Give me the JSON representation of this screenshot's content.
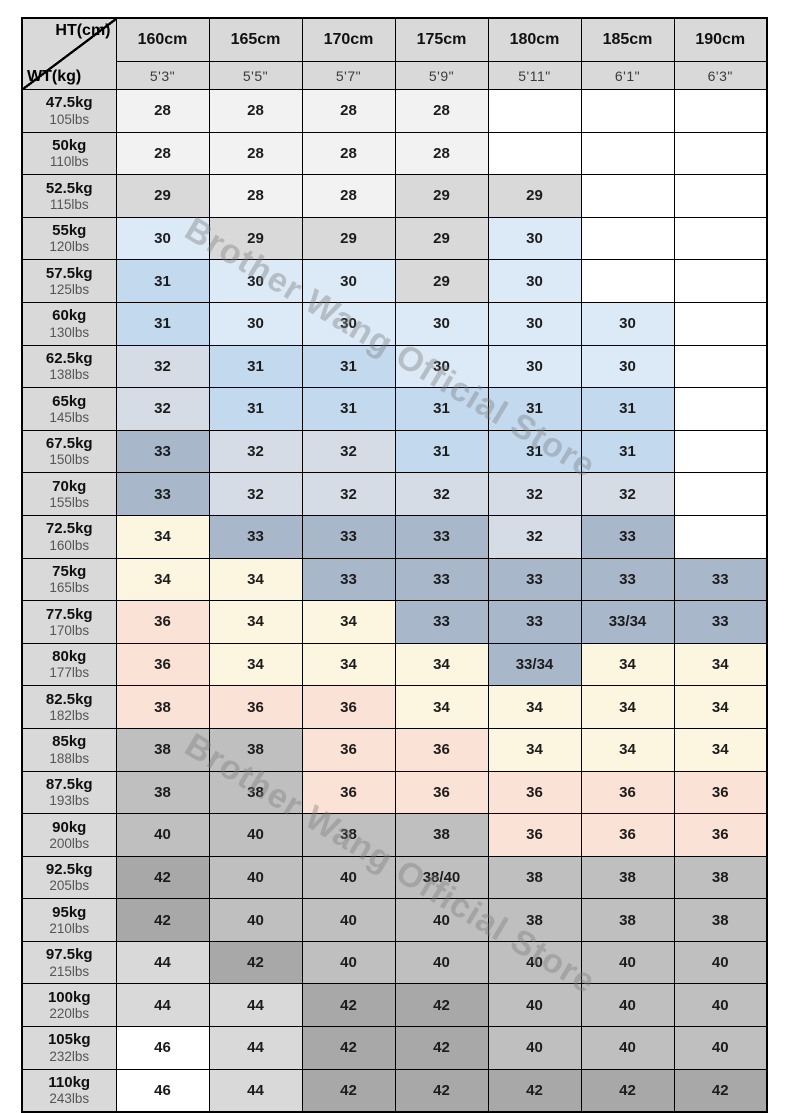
{
  "watermark": {
    "text": "Brother Wang Official Store"
  },
  "palette": {
    "w": "#ffffff",
    "xl": "#f2f2f2",
    "g": "#d9d9d9",
    "mg": "#bfbfbf",
    "dg": "#a8a8a8",
    "lb": "#dce9f6",
    "mb": "#c3d9ee",
    "ls": "#d5dce5",
    "sl": "#a8b7c9",
    "cr": "#fcf6e0",
    "pe": "#fbe2d6"
  },
  "chart_data": {
    "type": "table",
    "title": "Height / Weight size chart",
    "corner": {
      "top_label": "HT(cm)",
      "bottom_label": "WT(kg)"
    },
    "height_columns": [
      {
        "cm": "160cm",
        "ft": "5'3\""
      },
      {
        "cm": "165cm",
        "ft": "5'5\""
      },
      {
        "cm": "170cm",
        "ft": "5'7\""
      },
      {
        "cm": "175cm",
        "ft": "5'9\""
      },
      {
        "cm": "180cm",
        "ft": "5'11\""
      },
      {
        "cm": "185cm",
        "ft": "6'1\""
      },
      {
        "cm": "190cm",
        "ft": "6'3\""
      }
    ],
    "weight_rows": [
      {
        "kg": "47.5kg",
        "lbs": "105lbs",
        "sizes": [
          {
            "v": "28",
            "bg": "xl"
          },
          {
            "v": "28",
            "bg": "xl"
          },
          {
            "v": "28",
            "bg": "xl"
          },
          {
            "v": "28",
            "bg": "xl"
          },
          {
            "v": "",
            "bg": "w"
          },
          {
            "v": "",
            "bg": "w"
          },
          {
            "v": "",
            "bg": "w"
          }
        ]
      },
      {
        "kg": "50kg",
        "lbs": "110lbs",
        "sizes": [
          {
            "v": "28",
            "bg": "xl"
          },
          {
            "v": "28",
            "bg": "xl"
          },
          {
            "v": "28",
            "bg": "xl"
          },
          {
            "v": "28",
            "bg": "xl"
          },
          {
            "v": "",
            "bg": "w"
          },
          {
            "v": "",
            "bg": "w"
          },
          {
            "v": "",
            "bg": "w"
          }
        ]
      },
      {
        "kg": "52.5kg",
        "lbs": "115lbs",
        "sizes": [
          {
            "v": "29",
            "bg": "g"
          },
          {
            "v": "28",
            "bg": "xl"
          },
          {
            "v": "28",
            "bg": "xl"
          },
          {
            "v": "29",
            "bg": "g"
          },
          {
            "v": "29",
            "bg": "g"
          },
          {
            "v": "",
            "bg": "w"
          },
          {
            "v": "",
            "bg": "w"
          }
        ]
      },
      {
        "kg": "55kg",
        "lbs": "120lbs",
        "sizes": [
          {
            "v": "30",
            "bg": "lb"
          },
          {
            "v": "29",
            "bg": "g"
          },
          {
            "v": "29",
            "bg": "g"
          },
          {
            "v": "29",
            "bg": "g"
          },
          {
            "v": "30",
            "bg": "lb"
          },
          {
            "v": "",
            "bg": "w"
          },
          {
            "v": "",
            "bg": "w"
          }
        ]
      },
      {
        "kg": "57.5kg",
        "lbs": "125lbs",
        "sizes": [
          {
            "v": "31",
            "bg": "mb"
          },
          {
            "v": "30",
            "bg": "lb"
          },
          {
            "v": "30",
            "bg": "lb"
          },
          {
            "v": "29",
            "bg": "g"
          },
          {
            "v": "30",
            "bg": "lb"
          },
          {
            "v": "",
            "bg": "w"
          },
          {
            "v": "",
            "bg": "w"
          }
        ]
      },
      {
        "kg": "60kg",
        "lbs": "130lbs",
        "sizes": [
          {
            "v": "31",
            "bg": "mb"
          },
          {
            "v": "30",
            "bg": "lb"
          },
          {
            "v": "30",
            "bg": "lb"
          },
          {
            "v": "30",
            "bg": "lb"
          },
          {
            "v": "30",
            "bg": "lb"
          },
          {
            "v": "30",
            "bg": "lb"
          },
          {
            "v": "",
            "bg": "w"
          }
        ]
      },
      {
        "kg": "62.5kg",
        "lbs": "138lbs",
        "sizes": [
          {
            "v": "32",
            "bg": "ls"
          },
          {
            "v": "31",
            "bg": "mb"
          },
          {
            "v": "31",
            "bg": "mb"
          },
          {
            "v": "30",
            "bg": "lb"
          },
          {
            "v": "30",
            "bg": "lb"
          },
          {
            "v": "30",
            "bg": "lb"
          },
          {
            "v": "",
            "bg": "w"
          }
        ]
      },
      {
        "kg": "65kg",
        "lbs": "145lbs",
        "sizes": [
          {
            "v": "32",
            "bg": "ls"
          },
          {
            "v": "31",
            "bg": "mb"
          },
          {
            "v": "31",
            "bg": "mb"
          },
          {
            "v": "31",
            "bg": "mb"
          },
          {
            "v": "31",
            "bg": "mb"
          },
          {
            "v": "31",
            "bg": "mb"
          },
          {
            "v": "",
            "bg": "w"
          }
        ]
      },
      {
        "kg": "67.5kg",
        "lbs": "150lbs",
        "sizes": [
          {
            "v": "33",
            "bg": "sl"
          },
          {
            "v": "32",
            "bg": "ls"
          },
          {
            "v": "32",
            "bg": "ls"
          },
          {
            "v": "31",
            "bg": "mb"
          },
          {
            "v": "31",
            "bg": "mb"
          },
          {
            "v": "31",
            "bg": "mb"
          },
          {
            "v": "",
            "bg": "w"
          }
        ]
      },
      {
        "kg": "70kg",
        "lbs": "155lbs",
        "sizes": [
          {
            "v": "33",
            "bg": "sl"
          },
          {
            "v": "32",
            "bg": "ls"
          },
          {
            "v": "32",
            "bg": "ls"
          },
          {
            "v": "32",
            "bg": "ls"
          },
          {
            "v": "32",
            "bg": "ls"
          },
          {
            "v": "32",
            "bg": "ls"
          },
          {
            "v": "",
            "bg": "w"
          }
        ]
      },
      {
        "kg": "72.5kg",
        "lbs": "160lbs",
        "sizes": [
          {
            "v": "34",
            "bg": "cr"
          },
          {
            "v": "33",
            "bg": "sl"
          },
          {
            "v": "33",
            "bg": "sl"
          },
          {
            "v": "33",
            "bg": "sl"
          },
          {
            "v": "32",
            "bg": "ls"
          },
          {
            "v": "33",
            "bg": "sl"
          },
          {
            "v": "",
            "bg": "w"
          }
        ]
      },
      {
        "kg": "75kg",
        "lbs": "165lbs",
        "sizes": [
          {
            "v": "34",
            "bg": "cr"
          },
          {
            "v": "34",
            "bg": "cr"
          },
          {
            "v": "33",
            "bg": "sl"
          },
          {
            "v": "33",
            "bg": "sl"
          },
          {
            "v": "33",
            "bg": "sl"
          },
          {
            "v": "33",
            "bg": "sl"
          },
          {
            "v": "33",
            "bg": "sl"
          }
        ]
      },
      {
        "kg": "77.5kg",
        "lbs": "170lbs",
        "sizes": [
          {
            "v": "36",
            "bg": "pe"
          },
          {
            "v": "34",
            "bg": "cr"
          },
          {
            "v": "34",
            "bg": "cr"
          },
          {
            "v": "33",
            "bg": "sl"
          },
          {
            "v": "33",
            "bg": "sl"
          },
          {
            "v": "33/34",
            "bg": "sl"
          },
          {
            "v": "33",
            "bg": "sl"
          }
        ]
      },
      {
        "kg": "80kg",
        "lbs": "177lbs",
        "sizes": [
          {
            "v": "36",
            "bg": "pe"
          },
          {
            "v": "34",
            "bg": "cr"
          },
          {
            "v": "34",
            "bg": "cr"
          },
          {
            "v": "34",
            "bg": "cr"
          },
          {
            "v": "33/34",
            "bg": "sl"
          },
          {
            "v": "34",
            "bg": "cr"
          },
          {
            "v": "34",
            "bg": "cr"
          }
        ]
      },
      {
        "kg": "82.5kg",
        "lbs": "182lbs",
        "sizes": [
          {
            "v": "38",
            "bg": "pe"
          },
          {
            "v": "36",
            "bg": "pe"
          },
          {
            "v": "36",
            "bg": "pe"
          },
          {
            "v": "34",
            "bg": "cr"
          },
          {
            "v": "34",
            "bg": "cr"
          },
          {
            "v": "34",
            "bg": "cr"
          },
          {
            "v": "34",
            "bg": "cr"
          }
        ]
      },
      {
        "kg": "85kg",
        "lbs": "188lbs",
        "sizes": [
          {
            "v": "38",
            "bg": "mg"
          },
          {
            "v": "38",
            "bg": "mg"
          },
          {
            "v": "36",
            "bg": "pe"
          },
          {
            "v": "36",
            "bg": "pe"
          },
          {
            "v": "34",
            "bg": "cr"
          },
          {
            "v": "34",
            "bg": "cr"
          },
          {
            "v": "34",
            "bg": "cr"
          }
        ]
      },
      {
        "kg": "87.5kg",
        "lbs": "193lbs",
        "sizes": [
          {
            "v": "38",
            "bg": "mg"
          },
          {
            "v": "38",
            "bg": "mg"
          },
          {
            "v": "36",
            "bg": "pe"
          },
          {
            "v": "36",
            "bg": "pe"
          },
          {
            "v": "36",
            "bg": "pe"
          },
          {
            "v": "36",
            "bg": "pe"
          },
          {
            "v": "36",
            "bg": "pe"
          }
        ]
      },
      {
        "kg": "90kg",
        "lbs": "200lbs",
        "sizes": [
          {
            "v": "40",
            "bg": "mg"
          },
          {
            "v": "40",
            "bg": "mg"
          },
          {
            "v": "38",
            "bg": "mg"
          },
          {
            "v": "38",
            "bg": "mg"
          },
          {
            "v": "36",
            "bg": "pe"
          },
          {
            "v": "36",
            "bg": "pe"
          },
          {
            "v": "36",
            "bg": "pe"
          }
        ]
      },
      {
        "kg": "92.5kg",
        "lbs": "205lbs",
        "sizes": [
          {
            "v": "42",
            "bg": "dg"
          },
          {
            "v": "40",
            "bg": "mg"
          },
          {
            "v": "40",
            "bg": "mg"
          },
          {
            "v": "38/40",
            "bg": "mg"
          },
          {
            "v": "38",
            "bg": "mg"
          },
          {
            "v": "38",
            "bg": "mg"
          },
          {
            "v": "38",
            "bg": "mg"
          }
        ]
      },
      {
        "kg": "95kg",
        "lbs": "210lbs",
        "sizes": [
          {
            "v": "42",
            "bg": "dg"
          },
          {
            "v": "40",
            "bg": "mg"
          },
          {
            "v": "40",
            "bg": "mg"
          },
          {
            "v": "40",
            "bg": "mg"
          },
          {
            "v": "38",
            "bg": "mg"
          },
          {
            "v": "38",
            "bg": "mg"
          },
          {
            "v": "38",
            "bg": "mg"
          }
        ]
      },
      {
        "kg": "97.5kg",
        "lbs": "215lbs",
        "sizes": [
          {
            "v": "44",
            "bg": "g"
          },
          {
            "v": "42",
            "bg": "dg"
          },
          {
            "v": "40",
            "bg": "mg"
          },
          {
            "v": "40",
            "bg": "mg"
          },
          {
            "v": "40",
            "bg": "mg"
          },
          {
            "v": "40",
            "bg": "mg"
          },
          {
            "v": "40",
            "bg": "mg"
          }
        ]
      },
      {
        "kg": "100kg",
        "lbs": "220lbs",
        "sizes": [
          {
            "v": "44",
            "bg": "g"
          },
          {
            "v": "44",
            "bg": "g"
          },
          {
            "v": "42",
            "bg": "dg"
          },
          {
            "v": "42",
            "bg": "dg"
          },
          {
            "v": "40",
            "bg": "mg"
          },
          {
            "v": "40",
            "bg": "mg"
          },
          {
            "v": "40",
            "bg": "mg"
          }
        ]
      },
      {
        "kg": "105kg",
        "lbs": "232lbs",
        "sizes": [
          {
            "v": "46",
            "bg": "w"
          },
          {
            "v": "44",
            "bg": "g"
          },
          {
            "v": "42",
            "bg": "dg"
          },
          {
            "v": "42",
            "bg": "dg"
          },
          {
            "v": "40",
            "bg": "mg"
          },
          {
            "v": "40",
            "bg": "mg"
          },
          {
            "v": "40",
            "bg": "mg"
          }
        ]
      },
      {
        "kg": "110kg",
        "lbs": "243lbs",
        "sizes": [
          {
            "v": "46",
            "bg": "w"
          },
          {
            "v": "44",
            "bg": "g"
          },
          {
            "v": "42",
            "bg": "dg"
          },
          {
            "v": "42",
            "bg": "dg"
          },
          {
            "v": "42",
            "bg": "dg"
          },
          {
            "v": "42",
            "bg": "dg"
          },
          {
            "v": "42",
            "bg": "dg"
          }
        ]
      }
    ]
  }
}
